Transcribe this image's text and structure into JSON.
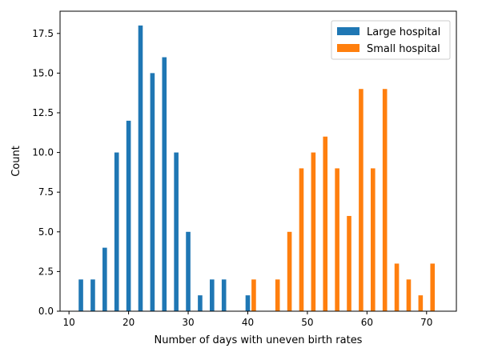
{
  "chart_data": {
    "type": "bar",
    "title": "",
    "xlabel": "Number of days with uneven birth rates",
    "ylabel": "Count",
    "xlim": [
      8.5,
      75
    ],
    "ylim": [
      0,
      18.9
    ],
    "x_ticks": [
      10,
      20,
      30,
      40,
      50,
      60,
      70
    ],
    "x_tick_labels": [
      "10",
      "20",
      "30",
      "40",
      "50",
      "60",
      "70"
    ],
    "y_ticks": [
      0,
      2.5,
      5,
      7.5,
      10,
      12.5,
      15,
      17.5
    ],
    "y_tick_labels": [
      "0.0",
      "2.5",
      "5.0",
      "7.5",
      "10.0",
      "12.5",
      "15.0",
      "17.5"
    ],
    "grid": false,
    "legend_position": "top-right",
    "series": [
      {
        "name": "Large hospital",
        "color": "#1f77b4",
        "points": [
          {
            "x": 12,
            "y": 2
          },
          {
            "x": 14,
            "y": 2
          },
          {
            "x": 16,
            "y": 4
          },
          {
            "x": 18,
            "y": 10
          },
          {
            "x": 20,
            "y": 12
          },
          {
            "x": 22,
            "y": 18
          },
          {
            "x": 24,
            "y": 15
          },
          {
            "x": 26,
            "y": 16
          },
          {
            "x": 28,
            "y": 10
          },
          {
            "x": 30,
            "y": 5
          },
          {
            "x": 32,
            "y": 1
          },
          {
            "x": 34,
            "y": 2
          },
          {
            "x": 36,
            "y": 2
          },
          {
            "x": 40,
            "y": 1
          }
        ]
      },
      {
        "name": "Small hospital",
        "color": "#ff7f0e",
        "points": [
          {
            "x": 41,
            "y": 2
          },
          {
            "x": 45,
            "y": 2
          },
          {
            "x": 47,
            "y": 5
          },
          {
            "x": 49,
            "y": 9
          },
          {
            "x": 51,
            "y": 10
          },
          {
            "x": 53,
            "y": 11
          },
          {
            "x": 55,
            "y": 9
          },
          {
            "x": 57,
            "y": 6
          },
          {
            "x": 59,
            "y": 14
          },
          {
            "x": 61,
            "y": 9
          },
          {
            "x": 63,
            "y": 14
          },
          {
            "x": 65,
            "y": 3
          },
          {
            "x": 67,
            "y": 2
          },
          {
            "x": 69,
            "y": 1
          },
          {
            "x": 71,
            "y": 3
          }
        ]
      }
    ]
  }
}
